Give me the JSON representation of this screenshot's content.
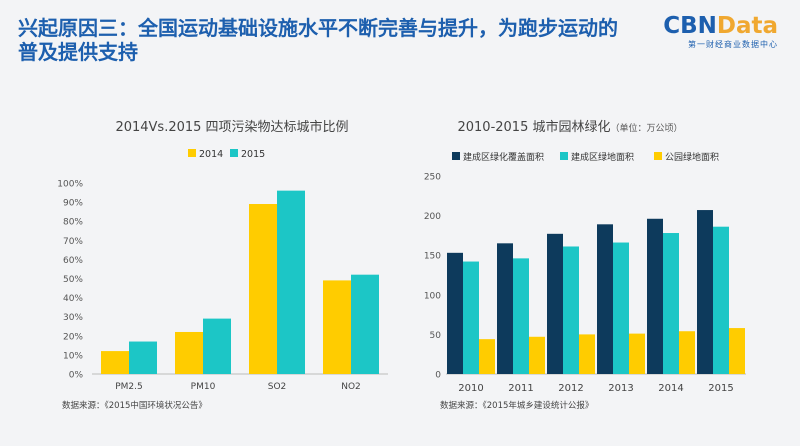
{
  "header": {
    "title_line1": "兴起原因三：全国运动基础设施水平不断完善与提升，为跑步运动的",
    "title_line2": "普及提供支持",
    "logo_main_a": "CBN",
    "logo_main_b": "Data",
    "logo_sub": "第一财经商业数据中心"
  },
  "colors": {
    "title": "#1d5fae",
    "yellow": "#ffcc00",
    "teal": "#1cc6c6",
    "navy": "#0d3a5c"
  },
  "chart_data": [
    {
      "type": "bar",
      "title": "2014Vs.2015 四项污染物达标城市比例",
      "categories": [
        "PM2.5",
        "PM10",
        "SO2",
        "NO2"
      ],
      "series": [
        {
          "name": "2014",
          "values": [
            12,
            22,
            89,
            49
          ],
          "color": "#ffcc00"
        },
        {
          "name": "2015",
          "values": [
            17,
            29,
            96,
            52
          ],
          "color": "#1cc6c6"
        }
      ],
      "ylim": [
        0,
        100
      ],
      "yticks": [
        "0%",
        "10%",
        "20%",
        "30%",
        "40%",
        "50%",
        "60%",
        "70%",
        "80%",
        "90%",
        "100%"
      ],
      "legend": "top",
      "grid": false,
      "source": "数据来源：《2015中国环境状况公告》"
    },
    {
      "type": "bar",
      "title": "2010-2015  城市园林绿化",
      "unit": "（单位：万公顷）",
      "categories": [
        "2010",
        "2011",
        "2012",
        "2013",
        "2014",
        "2015"
      ],
      "series": [
        {
          "name": "建成区绿化覆盖面积",
          "values": [
            153,
            165,
            177,
            189,
            196,
            207
          ],
          "color": "#0d3a5c"
        },
        {
          "name": "建成区绿地面积",
          "values": [
            142,
            146,
            161,
            166,
            178,
            186
          ],
          "color": "#1cc6c6"
        },
        {
          "name": "公园绿地面积",
          "values": [
            44,
            47,
            50,
            51,
            54,
            58
          ],
          "color": "#ffcc00"
        }
      ],
      "ylim": [
        0,
        250
      ],
      "yticks": [
        "0",
        "50",
        "100",
        "150",
        "200",
        "250"
      ],
      "legend": "top",
      "grid": false,
      "source": "数据来源：《2015年城乡建设统计公报》"
    }
  ]
}
